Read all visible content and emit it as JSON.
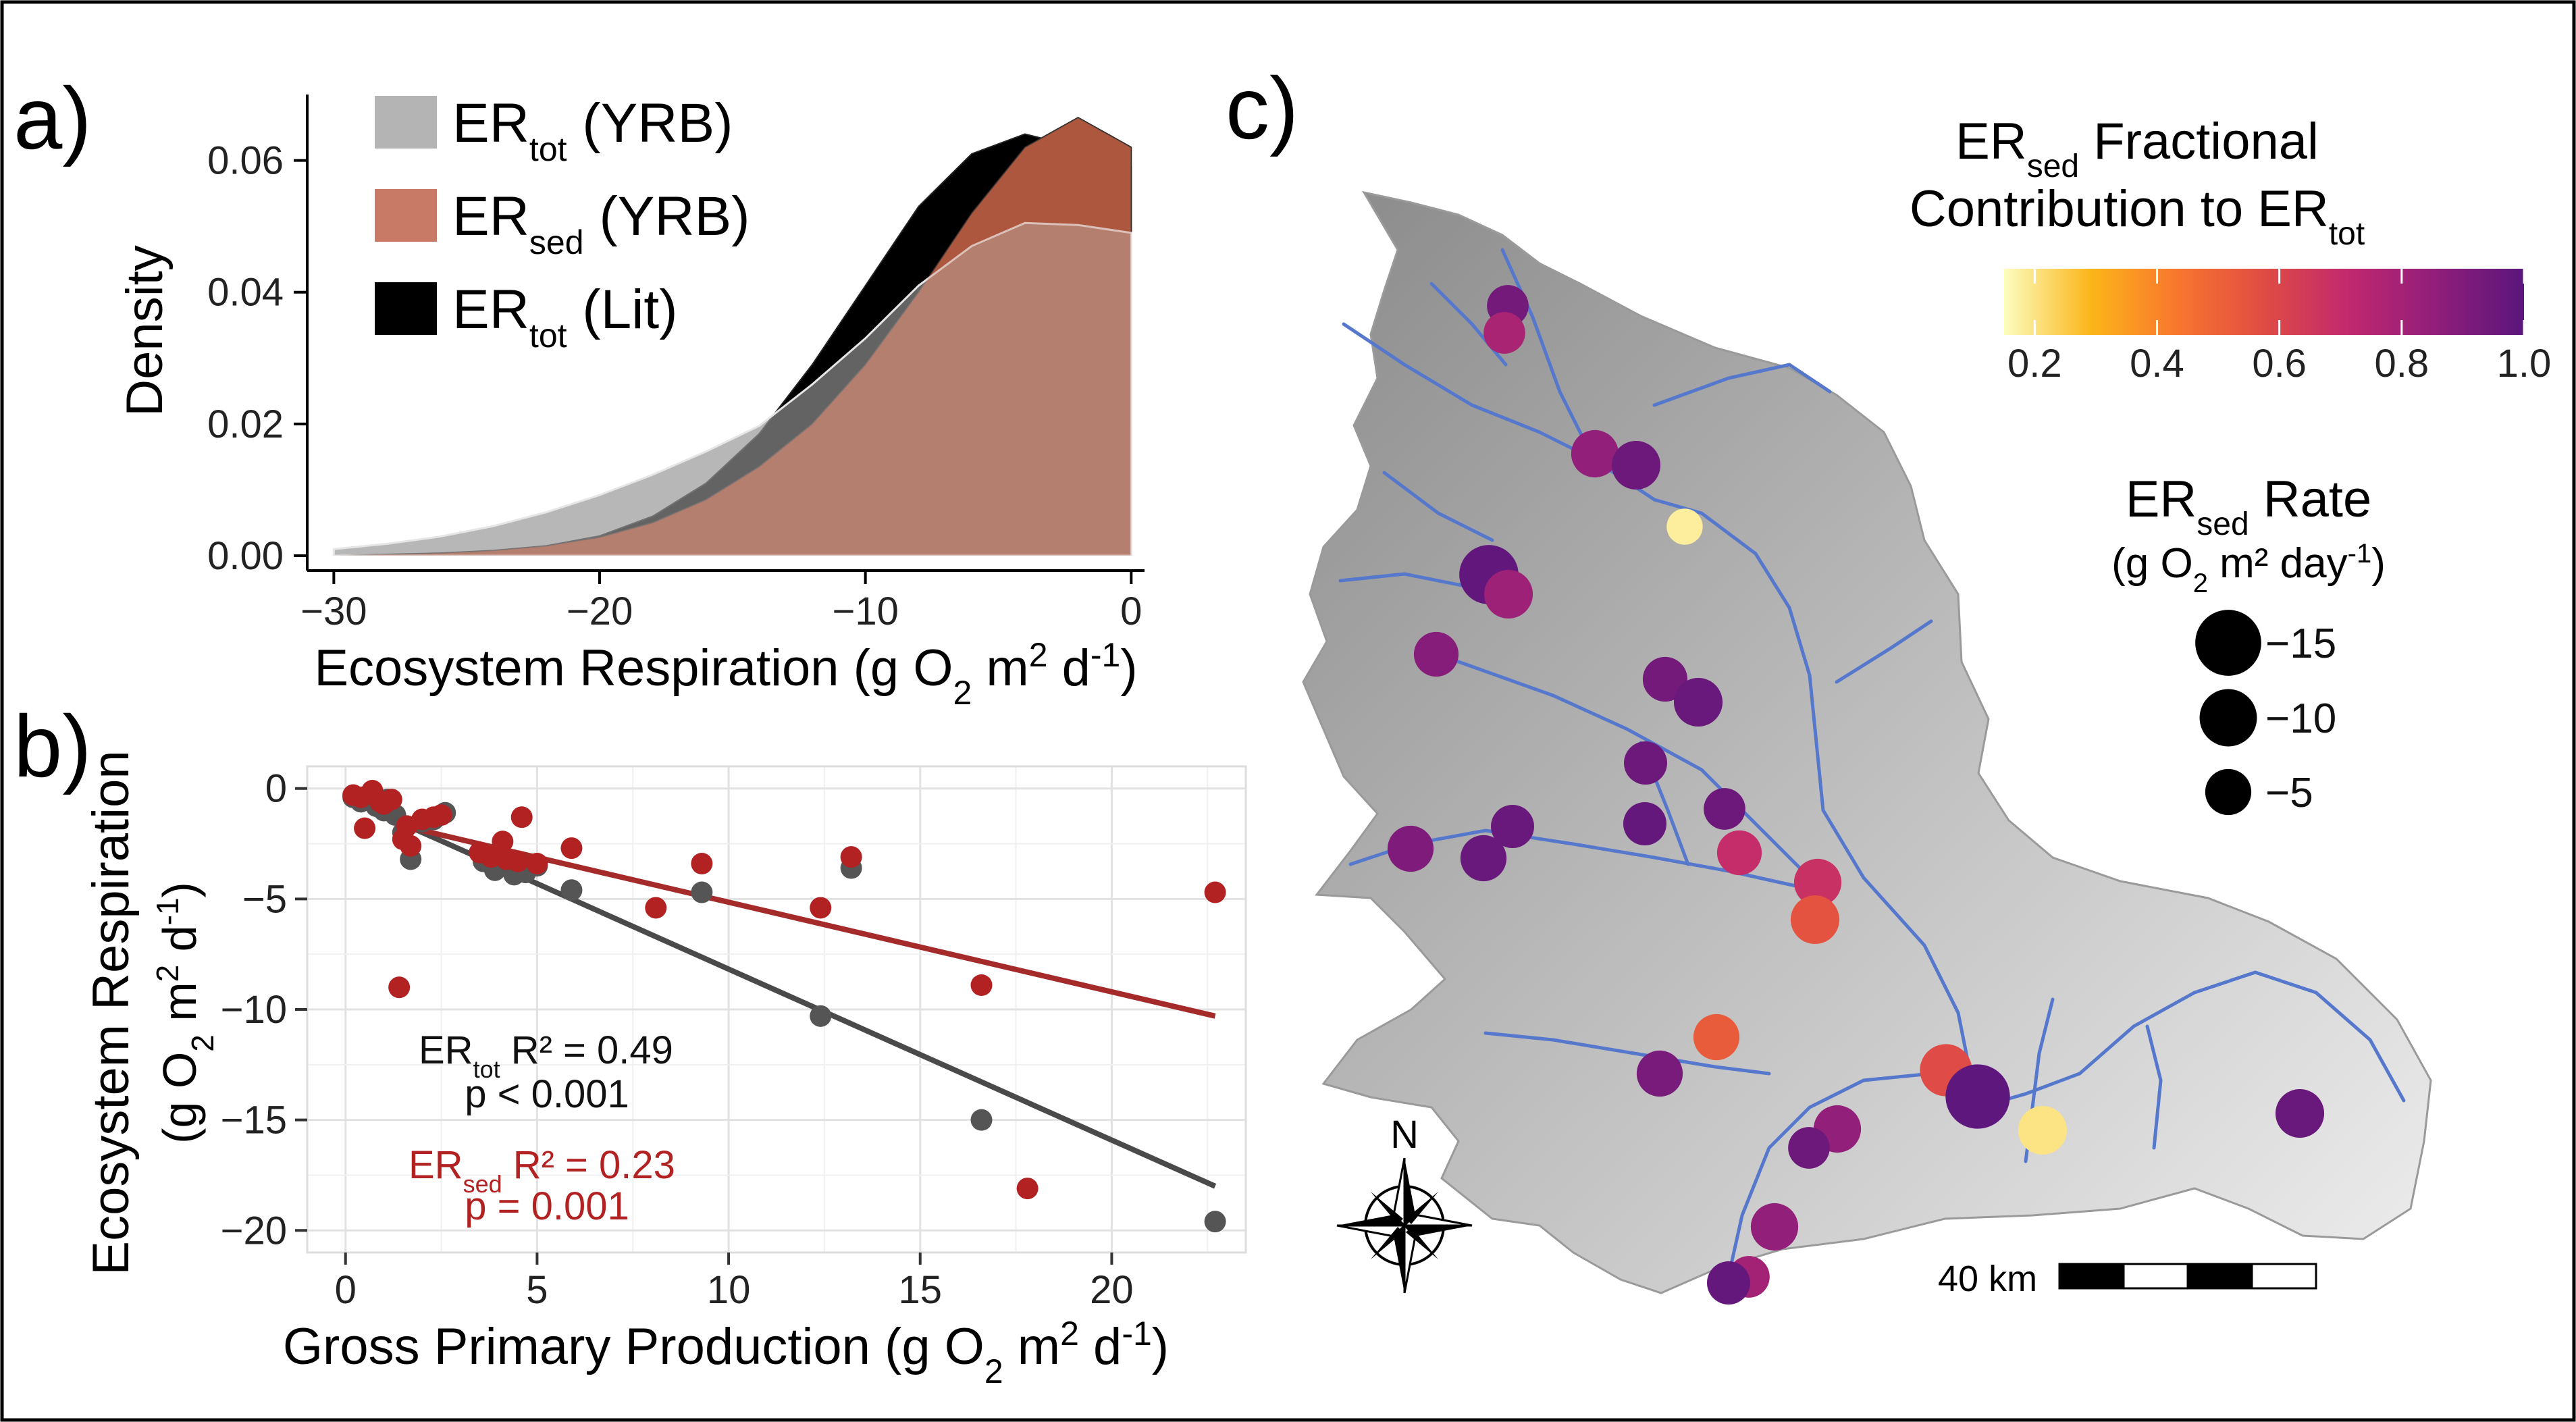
{
  "panel_labels": {
    "a": "a)",
    "b": "b)",
    "c": "c)"
  },
  "colors": {
    "er_tot_yrb": "#b4b4b4",
    "er_sed_yrb": "#c97a66",
    "er_tot_lit": "#000000",
    "fit_tot": "#4a4a4a",
    "fit_sed": "#a52a2a",
    "points_tot": "#555555",
    "points_sed": "#b22222",
    "river": "#5577cc"
  },
  "chart_data": [
    {
      "type": "area",
      "panel": "a",
      "xlabel_main": "Ecosystem Respiration (g O",
      "xlabel_sub": "2",
      "xlabel_mid": " m",
      "xlabel_sup": "2",
      "xlabel_end": " d",
      "xlabel_sup2": "-1",
      "xlabel_close": ")",
      "ylabel": "Density",
      "xlim": [
        -31,
        0.5
      ],
      "ylim": [
        0,
        0.07
      ],
      "xticks": [
        -30,
        -20,
        -10,
        0
      ],
      "xtick_labels": [
        "−30",
        "−20",
        "−10",
        "0"
      ],
      "yticks": [
        0.0,
        0.02,
        0.04,
        0.06
      ],
      "ytick_labels": [
        "0.00",
        "0.02",
        "0.04",
        "0.06"
      ],
      "legend": [
        {
          "main": "ER",
          "sub": "tot",
          "rest": " (YRB)",
          "color_key": "er_tot_yrb"
        },
        {
          "main": "ER",
          "sub": "sed",
          "rest": " (YRB)",
          "color_key": "er_sed_yrb"
        },
        {
          "main": "ER",
          "sub": "tot",
          "rest": " (Lit)",
          "color_key": "er_tot_lit"
        }
      ],
      "series": [
        {
          "name": "ER tot (YRB)",
          "color_key": "er_tot_yrb",
          "x": [
            -30,
            -28,
            -26,
            -24,
            -22,
            -20,
            -18,
            -16,
            -14,
            -12,
            -10,
            -8,
            -6,
            -4,
            -2,
            0
          ],
          "y": [
            0.001,
            0.0018,
            0.0029,
            0.0045,
            0.0066,
            0.0092,
            0.0123,
            0.0158,
            0.0197,
            0.026,
            0.033,
            0.041,
            0.047,
            0.0505,
            0.0502,
            0.049
          ]
        },
        {
          "name": "ER sed (YRB)",
          "color_key": "er_sed_yrb",
          "x": [
            -30,
            -28,
            -26,
            -24,
            -22,
            -20,
            -18,
            -16,
            -14,
            -12,
            -10,
            -8,
            -6,
            -4,
            -2,
            0
          ],
          "y": [
            0.0,
            0.0002,
            0.0004,
            0.0008,
            0.0015,
            0.0028,
            0.005,
            0.0085,
            0.0135,
            0.02,
            0.029,
            0.04,
            0.052,
            0.062,
            0.0665,
            0.062
          ]
        },
        {
          "name": "ER tot (Lit)",
          "color_key": "er_tot_lit",
          "x": [
            -30,
            -28,
            -26,
            -24,
            -22,
            -20,
            -18,
            -16,
            -14,
            -12,
            -10,
            -8,
            -6,
            -4,
            -2,
            0
          ],
          "y": [
            0.0,
            0.0001,
            0.0003,
            0.0007,
            0.0015,
            0.003,
            0.006,
            0.011,
            0.0185,
            0.029,
            0.041,
            0.053,
            0.061,
            0.064,
            0.062,
            0.059
          ]
        }
      ]
    },
    {
      "type": "scatter",
      "panel": "b",
      "xlabel_main": "Gross Primary Production (g O",
      "xlabel_sub": "2",
      "xlabel_mid": " m",
      "xlabel_sup": "2",
      "xlabel_end": " d",
      "xlabel_sup2": "-1",
      "xlabel_close": ")",
      "ylabel_line1": "Ecosystem Respiration",
      "ylabel_line2_main": "(g O",
      "ylabel_line2_sub": "2",
      "ylabel_line2_mid": " m",
      "ylabel_line2_sup": "2",
      "ylabel_line2_end": " d",
      "ylabel_line2_sup2": "-1",
      "ylabel_line2_close": ")",
      "xlim": [
        -1,
        23.5
      ],
      "ylim": [
        -21,
        1
      ],
      "xticks": [
        0,
        5,
        10,
        15,
        20
      ],
      "xtick_labels": [
        "0",
        "5",
        "10",
        "15",
        "20"
      ],
      "yticks": [
        0,
        -5,
        -10,
        -15,
        -20
      ],
      "ytick_labels": [
        "0",
        "−5",
        "−10",
        "−15",
        "−20"
      ],
      "grid": true,
      "annotations": {
        "tot_main": "ER",
        "tot_sub": "tot",
        "tot_r2": " R² = 0.49",
        "tot_p": "p < 0.001",
        "sed_main": "ER",
        "sed_sub": "sed",
        "sed_r2": " R² = 0.23",
        "sed_p": "p = 0.001"
      },
      "fits": [
        {
          "name": "ER tot fit",
          "color_key": "fit_tot",
          "x": [
            1.5,
            22.7
          ],
          "y": [
            -1.6,
            -18.0
          ]
        },
        {
          "name": "ER sed fit",
          "color_key": "fit_sed",
          "x": [
            1.5,
            22.7
          ],
          "y": [
            -1.7,
            -10.3
          ]
        }
      ],
      "series": [
        {
          "name": "ER tot",
          "color_key": "points_tot",
          "x": [
            0.2,
            0.4,
            0.6,
            0.8,
            1.0,
            1.1,
            1.3,
            1.5,
            1.7,
            2.0,
            2.3,
            2.6,
            3.6,
            3.9,
            4.1,
            4.4,
            4.7,
            5.0,
            5.9,
            9.3,
            12.4,
            13.2,
            16.6,
            22.7
          ],
          "y": [
            -0.4,
            -0.6,
            -0.3,
            -0.8,
            -1.0,
            -0.5,
            -1.2,
            -2.0,
            -3.2,
            -1.5,
            -1.4,
            -1.1,
            -3.3,
            -3.7,
            -3.5,
            -3.9,
            -3.8,
            -3.5,
            -4.6,
            -4.7,
            -10.3,
            -3.6,
            -15.0,
            -19.6
          ]
        },
        {
          "name": "ER sed",
          "color_key": "points_sed",
          "x": [
            0.2,
            0.4,
            0.5,
            0.7,
            0.9,
            1.0,
            1.2,
            1.4,
            1.5,
            1.6,
            1.7,
            2.0,
            2.3,
            2.5,
            3.5,
            3.8,
            4.1,
            4.2,
            4.5,
            4.6,
            5.0,
            5.9,
            8.1,
            9.3,
            12.4,
            13.2,
            16.6,
            17.8,
            22.7
          ],
          "y": [
            -0.3,
            -0.4,
            -1.8,
            -0.1,
            -0.6,
            -0.7,
            -0.5,
            -9.0,
            -2.3,
            -1.7,
            -2.6,
            -1.4,
            -1.3,
            -1.2,
            -2.9,
            -3.1,
            -2.4,
            -3.2,
            -3.3,
            -1.3,
            -3.4,
            -2.7,
            -5.4,
            -3.4,
            -5.4,
            -3.1,
            -8.9,
            -18.1,
            -4.7
          ]
        }
      ]
    },
    {
      "type": "scatter",
      "panel": "c",
      "map": true,
      "colorbar_title_main": "ER",
      "colorbar_title_sub": "sed",
      "colorbar_title_rest": " Fractional",
      "colorbar_title_line2_main": "Contribution to ER",
      "colorbar_title_line2_sub": "tot",
      "colorbar_ticks": [
        0.2,
        0.4,
        0.6,
        0.8,
        1.0
      ],
      "colorbar_tick_labels": [
        "0.2",
        "0.4",
        "0.6",
        "0.8",
        "1.0"
      ],
      "colorbar_range": [
        0.15,
        1.0
      ],
      "colorbar_stops": [
        "#fcfdbf",
        "#fcb519",
        "#f8762e",
        "#e04c44",
        "#c0286f",
        "#8f1e7a",
        "#5a167c"
      ],
      "size_title_main": "ER",
      "size_title_sub": "sed",
      "size_title_rest": " Rate",
      "size_units_main": "(g O",
      "size_units_sub": "2",
      "size_units_mid": " m² day",
      "size_units_sup": "-1",
      "size_units_close": ")",
      "size_legend": [
        {
          "value": -15,
          "label": "−15"
        },
        {
          "value": -10,
          "label": "−10"
        },
        {
          "value": -5,
          "label": "−5"
        }
      ],
      "north_label": "N",
      "scale_label": "40 km",
      "sites": [
        {
          "id": "s01",
          "fraction": 0.93,
          "rate": -3.5
        },
        {
          "id": "s02",
          "fraction": 0.78,
          "rate": -3.5
        },
        {
          "id": "s03",
          "fraction": 0.85,
          "rate": -5.5
        },
        {
          "id": "s04",
          "fraction": 0.95,
          "rate": -6.0
        },
        {
          "id": "s05",
          "fraction": 0.18,
          "rate": -2.0
        },
        {
          "id": "s06",
          "fraction": 0.98,
          "rate": -11.0
        },
        {
          "id": "s07",
          "fraction": 0.82,
          "rate": -6.0
        },
        {
          "id": "s08",
          "fraction": 0.88,
          "rate": -4.5
        },
        {
          "id": "s09",
          "fraction": 0.93,
          "rate": -4.5
        },
        {
          "id": "s10",
          "fraction": 0.96,
          "rate": -6.0
        },
        {
          "id": "s11",
          "fraction": 0.95,
          "rate": -4.0
        },
        {
          "id": "s12",
          "fraction": 0.9,
          "rate": -5.0
        },
        {
          "id": "s13",
          "fraction": 0.96,
          "rate": -5.0
        },
        {
          "id": "s14",
          "fraction": 0.96,
          "rate": -4.0
        },
        {
          "id": "s15",
          "fraction": 0.97,
          "rate": -4.0
        },
        {
          "id": "s16",
          "fraction": 0.95,
          "rate": -3.5
        },
        {
          "id": "s17",
          "fraction": 0.7,
          "rate": -4.5
        },
        {
          "id": "s18",
          "fraction": 0.68,
          "rate": -5.5
        },
        {
          "id": "s19",
          "fraction": 0.55,
          "rate": -6.0
        },
        {
          "id": "s20",
          "fraction": 0.52,
          "rate": -5.0
        },
        {
          "id": "s21",
          "fraction": 0.92,
          "rate": -5.0
        },
        {
          "id": "s22",
          "fraction": 0.58,
          "rate": -7.5
        },
        {
          "id": "s23",
          "fraction": 0.99,
          "rate": -14.0
        },
        {
          "id": "s24",
          "fraction": 0.2,
          "rate": -6.0
        },
        {
          "id": "s25",
          "fraction": 0.96,
          "rate": -6.0
        },
        {
          "id": "s26",
          "fraction": 0.85,
          "rate": -5.5
        },
        {
          "id": "s27",
          "fraction": 0.95,
          "rate": -3.5
        },
        {
          "id": "s28",
          "fraction": 0.85,
          "rate": -5.5
        },
        {
          "id": "s29",
          "fraction": 0.8,
          "rate": -3.5
        },
        {
          "id": "s30",
          "fraction": 0.97,
          "rate": -4.0
        }
      ]
    }
  ]
}
